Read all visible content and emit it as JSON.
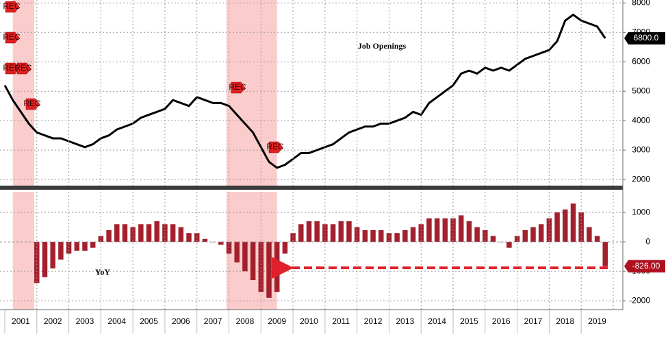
{
  "chart_data": [
    {
      "type": "line",
      "title": "Job Openings",
      "color": "#000000",
      "last_value_label": "6800.0",
      "x": [
        2001.0,
        2001.25,
        2001.5,
        2001.75,
        2002.0,
        2002.25,
        2002.5,
        2002.75,
        2003.0,
        2003.25,
        2003.5,
        2003.75,
        2004.0,
        2004.25,
        2004.5,
        2004.75,
        2005.0,
        2005.25,
        2005.5,
        2005.75,
        2006.0,
        2006.25,
        2006.5,
        2006.75,
        2007.0,
        2007.25,
        2007.5,
        2007.75,
        2008.0,
        2008.25,
        2008.5,
        2008.75,
        2009.0,
        2009.25,
        2009.5,
        2009.75,
        2010.0,
        2010.25,
        2010.5,
        2010.75,
        2011.0,
        2011.25,
        2011.5,
        2011.75,
        2012.0,
        2012.25,
        2012.5,
        2012.75,
        2013.0,
        2013.25,
        2013.5,
        2013.75,
        2014.0,
        2014.25,
        2014.5,
        2014.75,
        2015.0,
        2015.25,
        2015.5,
        2015.75,
        2016.0,
        2016.25,
        2016.5,
        2016.75,
        2017.0,
        2017.25,
        2017.5,
        2017.75,
        2018.0,
        2018.25,
        2018.5,
        2018.75,
        2019.0,
        2019.25,
        2019.5,
        2019.75
      ],
      "values": [
        5200,
        4700,
        4300,
        3900,
        3600,
        3500,
        3400,
        3400,
        3300,
        3200,
        3100,
        3200,
        3400,
        3500,
        3700,
        3800,
        3900,
        4100,
        4200,
        4300,
        4400,
        4700,
        4600,
        4500,
        4800,
        4700,
        4600,
        4600,
        4500,
        4200,
        3900,
        3600,
        3100,
        2600,
        2400,
        2500,
        2700,
        2900,
        2900,
        3000,
        3100,
        3200,
        3400,
        3600,
        3700,
        3800,
        3800,
        3900,
        3900,
        4000,
        4100,
        4300,
        4200,
        4600,
        4800,
        5000,
        5200,
        5600,
        5700,
        5600,
        5800,
        5700,
        5800,
        5700,
        5900,
        6100,
        6200,
        6300,
        6400,
        6700,
        7400,
        7600,
        7400,
        7300,
        7200,
        6800
      ],
      "xlim": [
        2000.85,
        2020.3
      ],
      "ylim": [
        1700,
        8100
      ],
      "yticks": [
        2000,
        3000,
        4000,
        5000,
        6000,
        7000,
        8000
      ],
      "grid": true,
      "recessions": [
        [
          2001.25,
          2001.92
        ],
        [
          2007.92,
          2009.5
        ]
      ],
      "events": [
        {
          "x": 2001.0,
          "label": "REC"
        },
        {
          "x": 2001.0,
          "label": "REC"
        },
        {
          "x": 2001.0,
          "label": "REC"
        },
        {
          "x": 2001.3,
          "label": "REC"
        },
        {
          "x": 2001.7,
          "label": "REC"
        },
        {
          "x": 2008.0,
          "label": "REC"
        },
        {
          "x": 2009.2,
          "label": "REC"
        }
      ]
    },
    {
      "type": "bar",
      "title": "YoY",
      "color": "#a3202c",
      "x": [
        2001.0,
        2001.25,
        2001.5,
        2001.75,
        2002.0,
        2002.25,
        2002.5,
        2002.75,
        2003.0,
        2003.25,
        2003.5,
        2003.75,
        2004.0,
        2004.25,
        2004.5,
        2004.75,
        2005.0,
        2005.25,
        2005.5,
        2005.75,
        2006.0,
        2006.25,
        2006.5,
        2006.75,
        2007.0,
        2007.25,
        2007.5,
        2007.75,
        2008.0,
        2008.25,
        2008.5,
        2008.75,
        2009.0,
        2009.25,
        2009.5,
        2009.75,
        2010.0,
        2010.25,
        2010.5,
        2010.75,
        2011.0,
        2011.25,
        2011.5,
        2011.75,
        2012.0,
        2012.25,
        2012.5,
        2012.75,
        2013.0,
        2013.25,
        2013.5,
        2013.75,
        2014.0,
        2014.25,
        2014.5,
        2014.75,
        2015.0,
        2015.25,
        2015.5,
        2015.75,
        2016.0,
        2016.25,
        2016.5,
        2016.75,
        2017.0,
        2017.25,
        2017.5,
        2017.75,
        2018.0,
        2018.25,
        2018.5,
        2018.75,
        2019.0,
        2019.25,
        2019.5,
        2019.75
      ],
      "values": [
        null,
        null,
        null,
        null,
        -1400,
        -1200,
        -900,
        -600,
        -400,
        -300,
        -300,
        -200,
        200,
        400,
        600,
        600,
        500,
        600,
        600,
        700,
        600,
        600,
        500,
        300,
        300,
        100,
        0,
        -100,
        -400,
        -700,
        -1000,
        -1300,
        -1700,
        -1900,
        -1700,
        -400,
        300,
        600,
        700,
        700,
        600,
        600,
        700,
        700,
        500,
        400,
        400,
        400,
        300,
        300,
        400,
        500,
        600,
        800,
        800,
        800,
        800,
        900,
        700,
        500,
        400,
        200,
        0,
        -200,
        200,
        400,
        500,
        600,
        800,
        1000,
        1100,
        1300,
        1000,
        500,
        200,
        -826
      ],
      "value_labels": [
        null,
        null,
        null,
        null,
        null,
        null,
        null,
        null,
        null,
        null,
        null,
        null,
        null,
        null,
        null,
        null,
        null,
        null,
        null,
        null,
        null,
        null,
        null,
        null,
        null,
        null,
        null,
        null,
        null,
        null,
        null,
        null,
        null,
        null,
        null,
        null,
        null,
        null,
        null,
        null,
        null,
        null,
        null,
        null,
        null,
        null,
        null,
        null,
        null,
        null,
        null,
        null,
        null,
        null,
        null,
        null,
        null,
        null,
        null,
        null,
        null,
        null,
        null,
        null,
        null,
        null,
        null,
        null,
        null,
        null,
        null,
        null,
        null,
        null,
        null,
        "-826.00"
      ],
      "xlim": [
        2000.85,
        2020.3
      ],
      "ylim": [
        -2300,
        1700
      ],
      "yticks": [
        -2000,
        -1000,
        0,
        1000
      ],
      "grid": true,
      "xticks": [
        {
          "value": 2001.5,
          "label": "2001"
        },
        {
          "value": 2002.5,
          "label": "2002"
        },
        {
          "value": 2003.5,
          "label": "2003"
        },
        {
          "value": 2004.5,
          "label": "2004"
        },
        {
          "value": 2005.5,
          "label": "2005"
        },
        {
          "value": 2006.5,
          "label": "2006"
        },
        {
          "value": 2007.5,
          "label": "2007"
        },
        {
          "value": 2008.5,
          "label": "2008"
        },
        {
          "value": 2009.5,
          "label": "2009"
        },
        {
          "value": 2010.5,
          "label": "2010"
        },
        {
          "value": 2011.5,
          "label": "2011"
        },
        {
          "value": 2012.5,
          "label": "2012"
        },
        {
          "value": 2013.5,
          "label": "2013"
        },
        {
          "value": 2014.5,
          "label": "2014"
        },
        {
          "value": 2015.5,
          "label": "2015"
        },
        {
          "value": 2016.5,
          "label": "2016"
        },
        {
          "value": 2017.5,
          "label": "2017"
        },
        {
          "value": 2018.5,
          "label": "2018"
        },
        {
          "value": 2019.5,
          "label": "2019"
        }
      ]
    }
  ]
}
